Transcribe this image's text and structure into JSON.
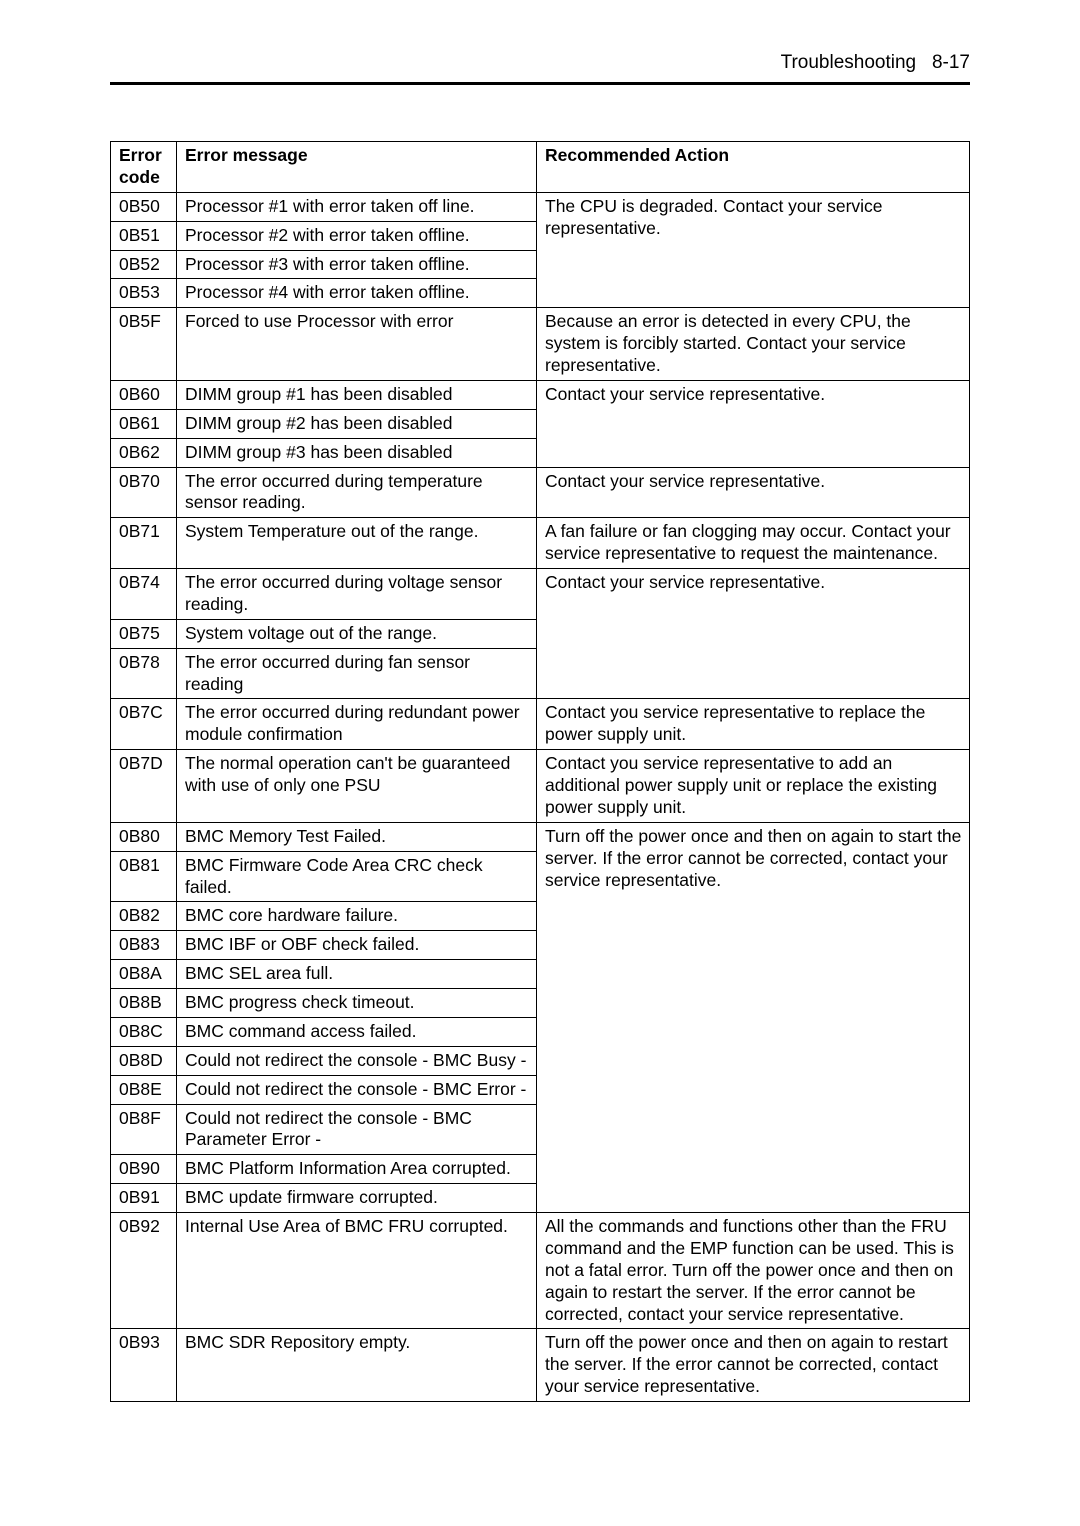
{
  "page_header": {
    "title": "Troubleshooting",
    "page_ref": "8-17"
  },
  "table": {
    "columns": {
      "code": "Error code",
      "msg": "Error message",
      "action": "Recommended Action"
    },
    "rows": {
      "r0B50": {
        "code": "0B50",
        "msg": "Processor #1 with error taken off line."
      },
      "r0B51": {
        "code": "0B51",
        "msg": "Processor #2 with error taken offline."
      },
      "r0B52": {
        "code": "0B52",
        "msg": "Processor #3 with error taken offline."
      },
      "r0B53": {
        "code": "0B53",
        "msg": "Processor #4 with error taken offline."
      },
      "r0B5F": {
        "code": "0B5F",
        "msg": "Forced to use Processor with error"
      },
      "r0B60": {
        "code": "0B60",
        "msg": "DIMM group #1 has been disabled"
      },
      "r0B61": {
        "code": "0B61",
        "msg": "DIMM group #2 has been disabled"
      },
      "r0B62": {
        "code": "0B62",
        "msg": "DIMM group #3 has been disabled"
      },
      "r0B70": {
        "code": "0B70",
        "msg": "The error occurred during temperature sensor reading."
      },
      "r0B71": {
        "code": "0B71",
        "msg": "System Temperature out of the range."
      },
      "r0B74": {
        "code": "0B74",
        "msg": "The error occurred during voltage sensor reading."
      },
      "r0B75": {
        "code": "0B75",
        "msg": "System voltage out of the range."
      },
      "r0B78": {
        "code": "0B78",
        "msg": "The error occurred during fan sensor reading"
      },
      "r0B7C": {
        "code": "0B7C",
        "msg": "The error occurred during redundant power module confirmation"
      },
      "r0B7D": {
        "code": "0B7D",
        "msg": "The normal operation can't be guaranteed with use of only one PSU"
      },
      "r0B80": {
        "code": "0B80",
        "msg": "BMC Memory Test Failed."
      },
      "r0B81": {
        "code": "0B81",
        "msg": "BMC Firmware Code Area CRC check failed."
      },
      "r0B82": {
        "code": "0B82",
        "msg": "BMC core hardware failure."
      },
      "r0B83": {
        "code": "0B83",
        "msg": "BMC IBF or OBF check failed."
      },
      "r0B8A": {
        "code": "0B8A",
        "msg": "BMC SEL area full."
      },
      "r0B8B": {
        "code": "0B8B",
        "msg": "BMC progress check timeout."
      },
      "r0B8C": {
        "code": "0B8C",
        "msg": "BMC command access failed."
      },
      "r0B8D": {
        "code": "0B8D",
        "msg": "Could not redirect the console - BMC Busy -"
      },
      "r0B8E": {
        "code": "0B8E",
        "msg": "Could not redirect the console - BMC Error -"
      },
      "r0B8F": {
        "code": "0B8F",
        "msg": "Could not redirect the console - BMC Parameter Error -"
      },
      "r0B90": {
        "code": "0B90",
        "msg": "BMC Platform Information Area corrupted."
      },
      "r0B91": {
        "code": "0B91",
        "msg": "BMC update firmware corrupted."
      },
      "r0B92": {
        "code": "0B92",
        "msg": "Internal Use Area of BMC FRU corrupted."
      },
      "r0B93": {
        "code": "0B93",
        "msg": "BMC SDR Repository empty."
      }
    },
    "actions": {
      "a1": "The CPU is degraded.   Contact your service representative.",
      "a2": "Because an error is detected in every CPU, the system is forcibly started.   Contact your service representative.",
      "a3": "Contact your service representative.",
      "a4": "Contact your service representative.",
      "a5": "A fan failure or fan clogging may occur. Contact your service representative to request the maintenance.",
      "a6": "Contact your service representative.",
      "a7": "Contact you service representative to replace the power supply unit.",
      "a8": "Contact you service representative to add an additional power supply unit or replace the existing power supply unit.",
      "a9": "Turn off the power once and then on again to start the server.   If the error cannot be corrected, contact your service representative.",
      "a10": "All the commands and functions other than the FRU command and the EMP function can be used.   This is not a fatal error.   Turn off the power once and then on again to restart the server.   If the error cannot be corrected, contact your service representative.",
      "a11": "Turn off the power once and then on again to restart the server.   If the error cannot be corrected, contact your service representative."
    }
  }
}
